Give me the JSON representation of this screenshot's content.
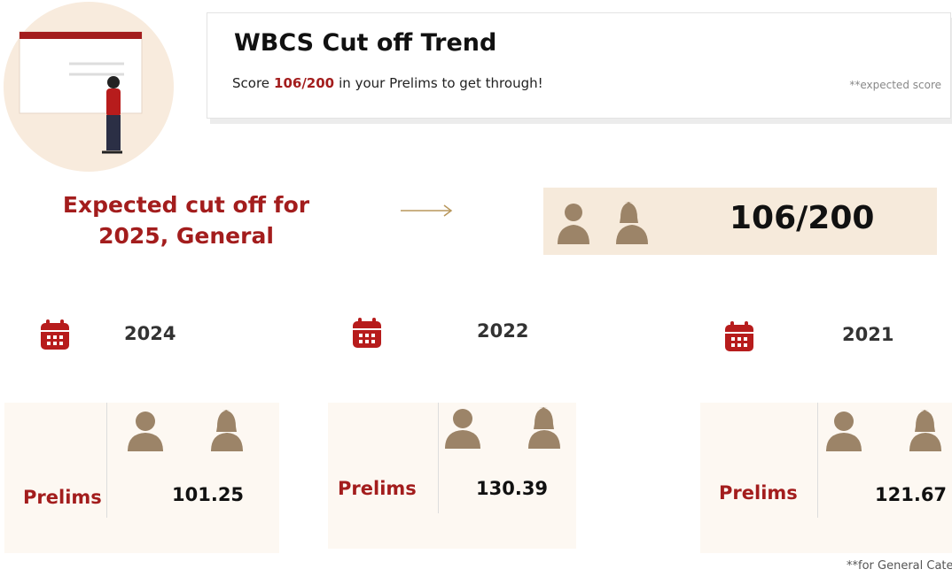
{
  "header": {
    "title": "WBCS Cut off Trend",
    "subtitle_prefix": "Score",
    "subtitle_highlight": "106/200",
    "subtitle_suffix": "in your Prelims to get through!",
    "note": "**expected score"
  },
  "expected": {
    "label": "Expected cut off for 2025, General",
    "score": "106/200"
  },
  "years": [
    {
      "year": 2024,
      "exam": "Prelims",
      "score": 101.25
    },
    {
      "year": 2022,
      "exam": "Prelims",
      "score": 130.39
    },
    {
      "year": 2021,
      "exam": "Prelims",
      "score": 121.67
    }
  ],
  "footnote": "**for General Cate"
}
